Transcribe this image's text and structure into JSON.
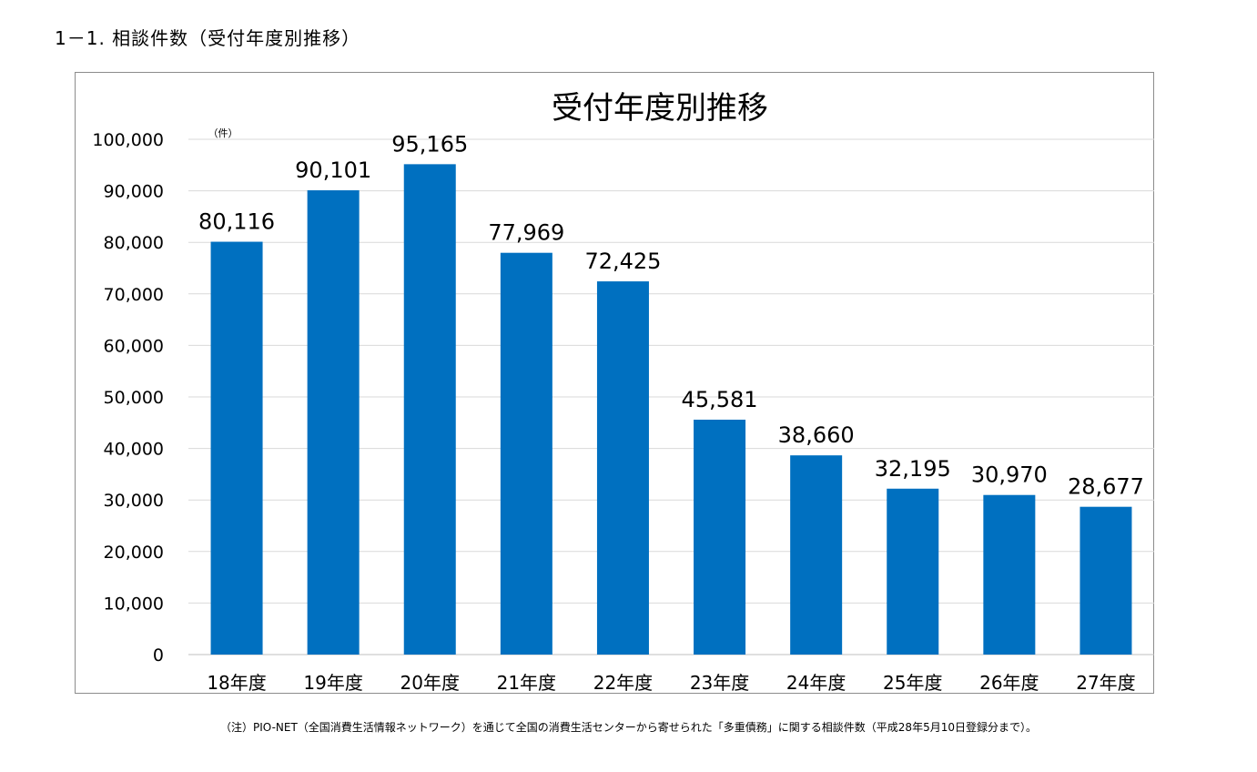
{
  "section_heading": "1－1. 相談件数（受付年度別推移）",
  "footnote": "（注）PIO-NET（全国消費生活情報ネットワーク）を通じて全国の消費生活センターから寄せられた「多重債務」に関する相談件数（平成28年5月10日登録分まで）。",
  "chart_data": {
    "type": "bar",
    "title": "受付年度別推移",
    "unit_label": "（件）",
    "xlabel": "",
    "ylabel": "",
    "categories": [
      "18年度",
      "19年度",
      "20年度",
      "21年度",
      "22年度",
      "23年度",
      "24年度",
      "25年度",
      "26年度",
      "27年度"
    ],
    "values": [
      80116,
      90101,
      95165,
      77969,
      72425,
      45581,
      38660,
      32195,
      30970,
      28677
    ],
    "value_labels": [
      "80,116",
      "90,101",
      "95,165",
      "77,969",
      "72,425",
      "45,581",
      "38,660",
      "32,195",
      "30,970",
      "28,677"
    ],
    "ylim": [
      0,
      100000
    ],
    "yticks": [
      0,
      10000,
      20000,
      30000,
      40000,
      50000,
      60000,
      70000,
      80000,
      90000,
      100000
    ],
    "ytick_labels": [
      "0",
      "10,000",
      "20,000",
      "30,000",
      "40,000",
      "50,000",
      "60,000",
      "70,000",
      "80,000",
      "90,000",
      "100,000"
    ],
    "grid": true,
    "legend": "none",
    "bar_color": "#0070c0",
    "grid_color": "#d9d9d9"
  }
}
